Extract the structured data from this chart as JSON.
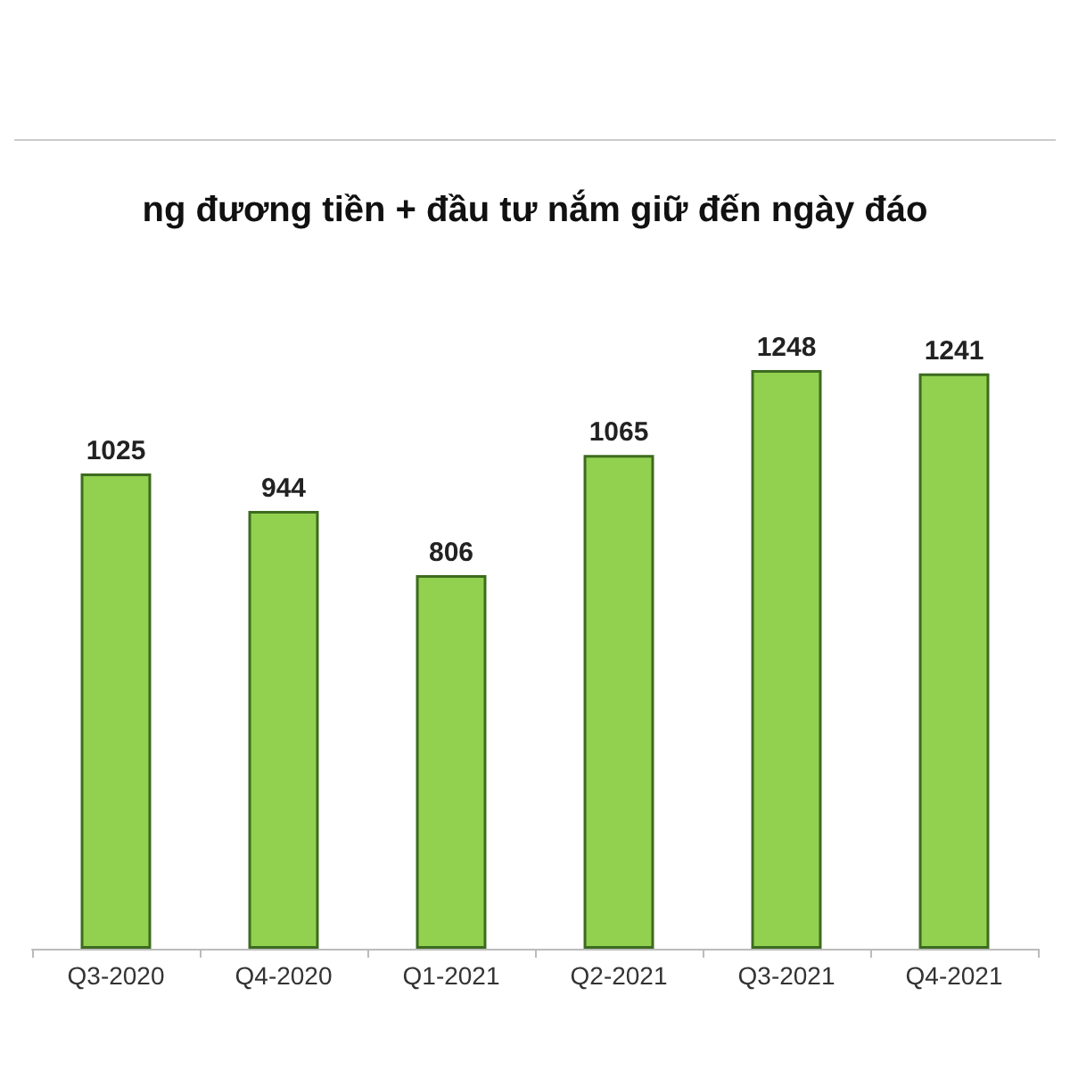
{
  "chart_data": {
    "type": "bar",
    "title": "ng đương tiền + đầu tư nắm giữ đến ngày đáo",
    "categories": [
      "Q3-2020",
      "Q4-2020",
      "Q1-2021",
      "Q2-2021",
      "Q3-2021",
      "Q4-2021"
    ],
    "values": [
      1025,
      944,
      806,
      1065,
      1248,
      1241
    ],
    "color": "#92d050",
    "data_labels": true
  }
}
